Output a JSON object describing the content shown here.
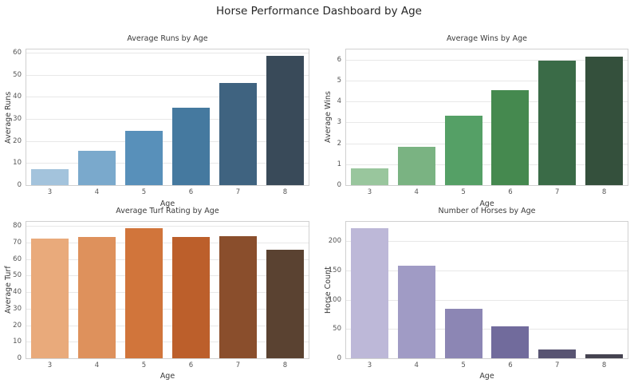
{
  "figure_title": "Horse Performance Dashboard by Age",
  "style": {
    "background": "#ffffff",
    "grid_color": "#e8e8e8",
    "axes_border_color": "#d0d0d0",
    "title_color": "#262626",
    "label_color": "#3a3a3a",
    "tick_color": "#555555"
  },
  "chart_data": [
    {
      "type": "bar",
      "title": "Average Runs by Age",
      "xlabel": "Age",
      "ylabel": "Average Runs",
      "categories": [
        "3",
        "4",
        "5",
        "6",
        "7",
        "8"
      ],
      "values": [
        7.1,
        15.4,
        24.6,
        35.2,
        46.5,
        58.6
      ],
      "yticks": [
        0,
        10,
        20,
        30,
        40,
        50,
        60
      ],
      "ylim": [
        0,
        61.5
      ],
      "grid": true,
      "legend": "none",
      "colors": [
        "#a3c3dc",
        "#7aa9cc",
        "#5890ba",
        "#45799f",
        "#3f6380",
        "#394a59"
      ]
    },
    {
      "type": "bar",
      "title": "Average Wins by Age",
      "xlabel": "Age",
      "ylabel": "Average Wins",
      "categories": [
        "3",
        "4",
        "5",
        "6",
        "7",
        "8"
      ],
      "values": [
        0.8,
        1.85,
        3.3,
        4.55,
        5.95,
        6.15
      ],
      "yticks": [
        0,
        1,
        2,
        3,
        4,
        5,
        6
      ],
      "ylim": [
        0,
        6.48
      ],
      "grid": true,
      "legend": "none",
      "colors": [
        "#99c69d",
        "#7ab382",
        "#55a066",
        "#45894f",
        "#3a6b47",
        "#34503c"
      ]
    },
    {
      "type": "bar",
      "title": "Average Turf Rating by Age",
      "xlabel": "Age",
      "ylabel": "Average Turf",
      "categories": [
        "3",
        "4",
        "5",
        "6",
        "7",
        "8"
      ],
      "values": [
        72.6,
        73.2,
        78.6,
        73.5,
        73.9,
        65.5
      ],
      "yticks": [
        0,
        10,
        20,
        30,
        40,
        50,
        60,
        70,
        80
      ],
      "ylim": [
        0,
        82.5
      ],
      "grid": true,
      "legend": "none",
      "colors": [
        "#e9aa7b",
        "#de915c",
        "#d1753b",
        "#bc5f2b",
        "#8a4e2c",
        "#5a4231"
      ]
    },
    {
      "type": "bar",
      "title": "Number of Horses by Age",
      "xlabel": "Age",
      "ylabel": "Horse Count",
      "categories": [
        "3",
        "4",
        "5",
        "6",
        "7",
        "8"
      ],
      "values": [
        222,
        158,
        84,
        55,
        15,
        7
      ],
      "yticks": [
        0,
        50,
        100,
        150,
        200
      ],
      "ylim": [
        0,
        233
      ],
      "grid": true,
      "legend": "none",
      "colors": [
        "#bdb8d8",
        "#a09bc5",
        "#8c86b4",
        "#716b9c",
        "#585472",
        "#454350"
      ]
    }
  ]
}
